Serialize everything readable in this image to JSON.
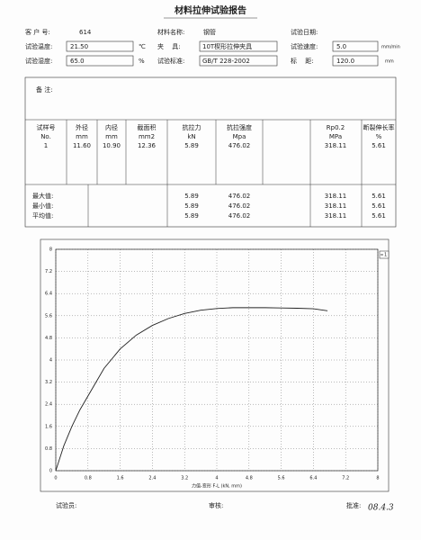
{
  "title": "材料拉伸试验报告",
  "header": {
    "customer_label": "客 户 号:",
    "customer": "614",
    "material_label": "材料名称:",
    "material": "钢管",
    "date_label": "试验日期:",
    "temperature_label": "试验温度:",
    "temperature": "21.50",
    "temperature_unit": "℃",
    "fixture_label": "夹　 具:",
    "fixture": "10T楔形拉伸夹具",
    "speed_label": "试验速度:",
    "speed": "5.0",
    "speed_unit": "mm/min",
    "humidity_label": "试验湿度:",
    "humidity": "65.0",
    "humidity_unit": "%",
    "standard_label": "试验标准:",
    "standard": "GB/T 228-2002",
    "gauge_label": "标　 距:",
    "gauge": "120.0",
    "gauge_unit": "mm"
  },
  "remarks_label": "备 注:",
  "table": {
    "columns": [
      {
        "name": "试样号",
        "unit": "No."
      },
      {
        "name": "外径",
        "unit": "mm"
      },
      {
        "name": "内径",
        "unit": "mm"
      },
      {
        "name": "截面积",
        "unit": "mm2"
      },
      {
        "name": "抗拉力",
        "unit": "kN"
      },
      {
        "name": "抗拉强度",
        "unit": "Mpa"
      },
      {
        "name": "Rp0.2",
        "unit": "MPa"
      },
      {
        "name": "断裂伸长率",
        "unit": "%"
      }
    ],
    "rows": [
      [
        "1",
        "11.60",
        "10.90",
        "12.36",
        "5.89",
        "476.02",
        "318.11",
        "5.61"
      ]
    ],
    "stats": [
      {
        "label": "最大值:",
        "values": [
          "5.89",
          "476.02",
          "318.11",
          "5.61"
        ]
      },
      {
        "label": "最小值:",
        "values": [
          "5.89",
          "476.02",
          "318.11",
          "5.61"
        ]
      },
      {
        "label": "平均值:",
        "values": [
          "5.89",
          "476.02",
          "318.11",
          "5.61"
        ]
      }
    ]
  },
  "chart_data": {
    "type": "line",
    "x_label": "力值-变形 F-L  (kN, mm)",
    "x": [
      0,
      0.1,
      0.2,
      0.4,
      0.6,
      0.8,
      1.0,
      1.2,
      1.6,
      2.0,
      2.4,
      2.8,
      3.2,
      3.6,
      4.0,
      4.4,
      4.8,
      5.2,
      5.6,
      6.0,
      6.4,
      6.75
    ],
    "series": [
      {
        "name": "1",
        "color": "#222222",
        "values": [
          0,
          0.45,
          0.9,
          1.6,
          2.2,
          2.7,
          3.2,
          3.7,
          4.4,
          4.9,
          5.25,
          5.5,
          5.68,
          5.8,
          5.86,
          5.89,
          5.89,
          5.89,
          5.88,
          5.87,
          5.85,
          5.78
        ]
      }
    ],
    "xlim": [
      0,
      8
    ],
    "ylim": [
      0,
      8
    ],
    "xticks": [
      0,
      0.8,
      1.6,
      2.4,
      3.2,
      4,
      4.8,
      5.6,
      6.4,
      7.2,
      8
    ],
    "yticks": [
      0,
      0.8,
      1.6,
      2.4,
      3.2,
      4,
      4.8,
      5.6,
      6.4,
      7.2,
      8
    ],
    "grid": true
  },
  "footer": {
    "tester_label": "试验员:",
    "reviewer_label": "审核:",
    "approver_label": "批准:",
    "approver_note": "08.4.3"
  }
}
